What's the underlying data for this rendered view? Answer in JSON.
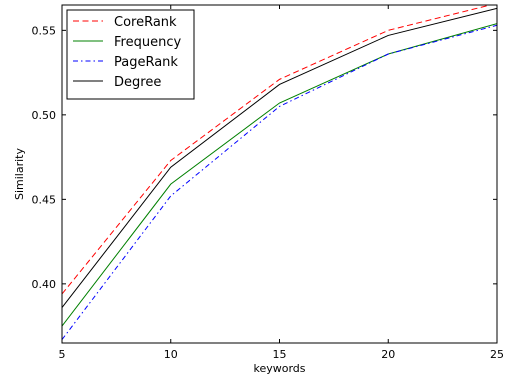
{
  "chart_data": {
    "type": "line",
    "xlabel": "keywords",
    "ylabel": "Similarity",
    "x": [
      5,
      10,
      15,
      20,
      25
    ],
    "xlim": [
      5,
      25
    ],
    "ylim": [
      0.365,
      0.565
    ],
    "xticks": [
      "5",
      "10",
      "15",
      "20",
      "25"
    ],
    "yticks": [
      "0.40",
      "0.45",
      "0.50",
      "0.55"
    ],
    "ytick_values": [
      0.4,
      0.45,
      0.5,
      0.55
    ],
    "grid": false,
    "legend_position": "top-left",
    "series": [
      {
        "name": "CoreRank",
        "color": "#ff0000",
        "dash": "dashed",
        "values": [
          0.394,
          0.473,
          0.521,
          0.55,
          0.566
        ]
      },
      {
        "name": "Frequency",
        "color": "#008000",
        "dash": "solid",
        "values": [
          0.375,
          0.459,
          0.507,
          0.536,
          0.554
        ]
      },
      {
        "name": "PageRank",
        "color": "#0000ff",
        "dash": "dashdot",
        "values": [
          0.367,
          0.452,
          0.505,
          0.536,
          0.553
        ]
      },
      {
        "name": "Degree",
        "color": "#000000",
        "dash": "solid",
        "values": [
          0.386,
          0.469,
          0.518,
          0.547,
          0.563
        ]
      }
    ]
  }
}
